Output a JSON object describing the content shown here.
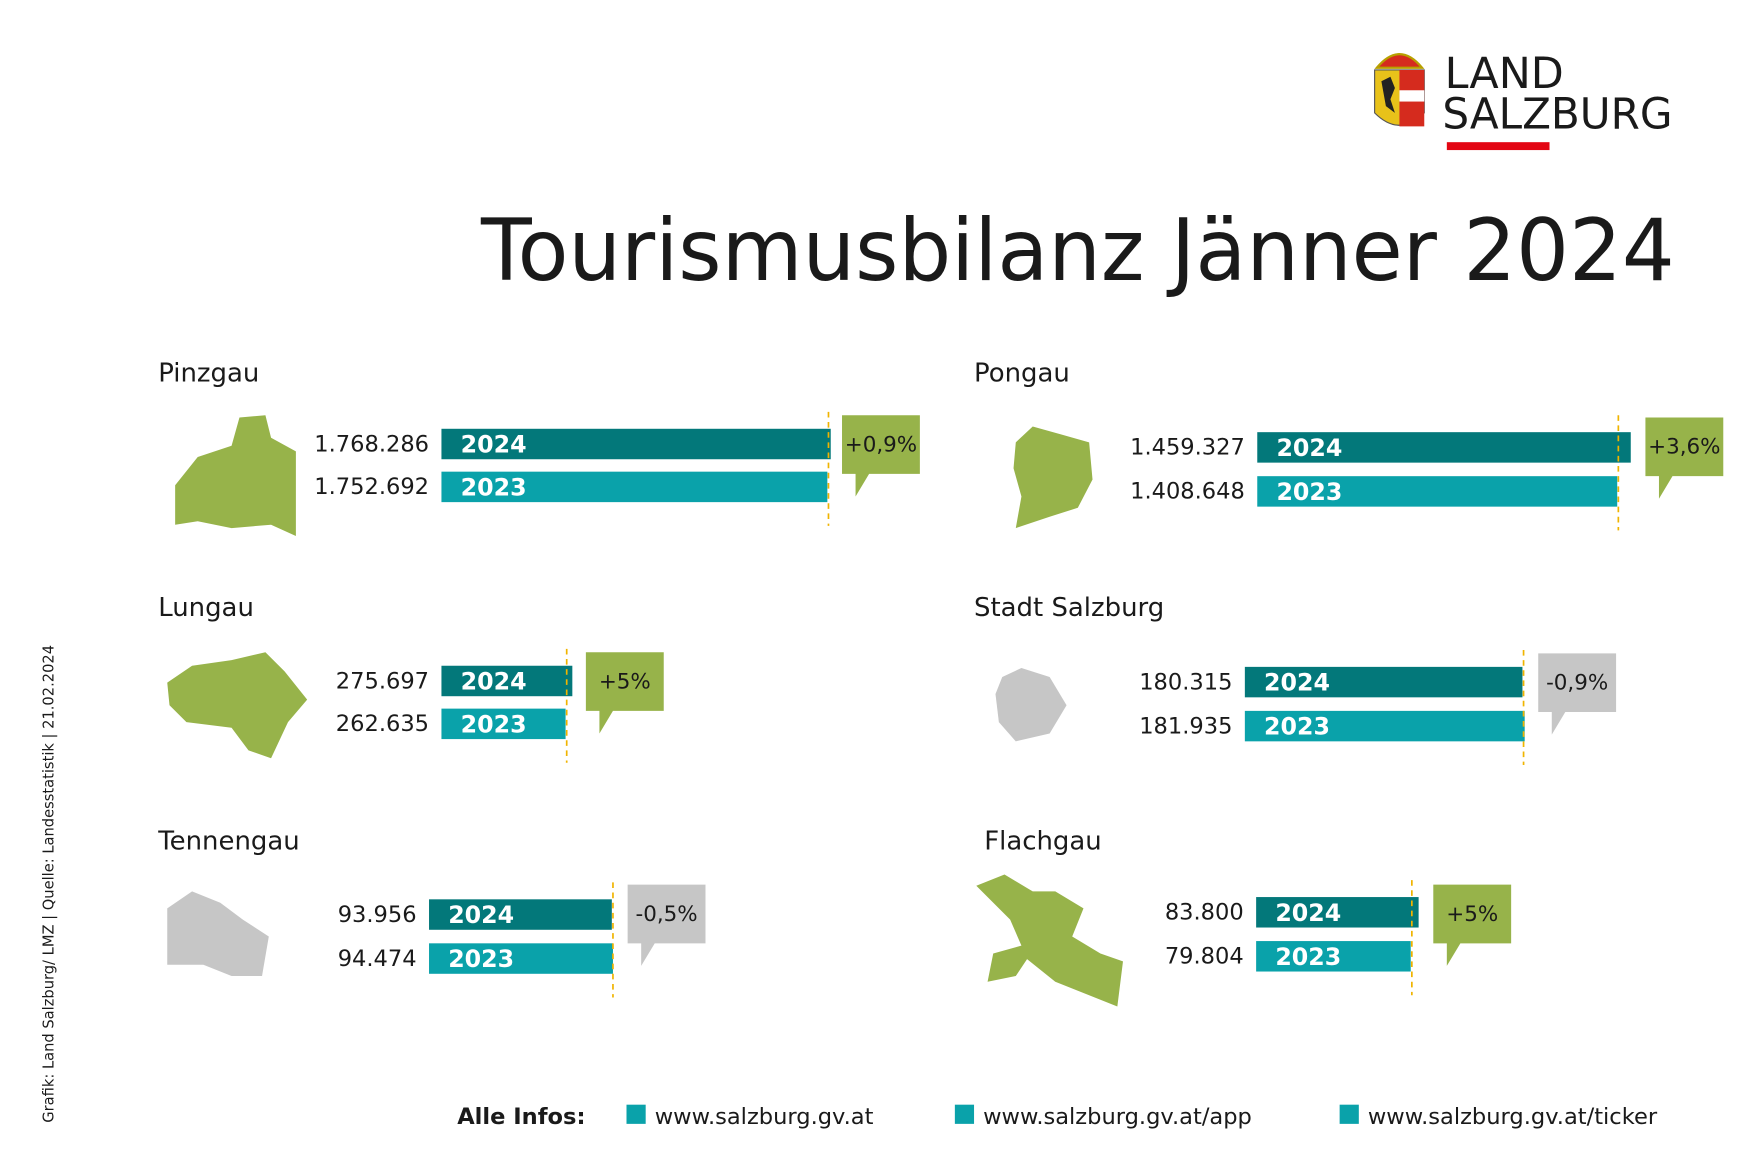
{
  "logo": {
    "line1": "LAND",
    "line2": "SALZBURG"
  },
  "title": "Tourismusbilanz Jänner 2024",
  "side_note": "Grafik: Land Salzburg/ LMZ | Quelle: Landesstatistik | 21.02.2024",
  "regions": [
    {
      "name": "Pinzgau",
      "rows": [
        {
          "year": "2024",
          "value": "1.768.286"
        },
        {
          "year": "2023",
          "value": "1.752.692"
        }
      ],
      "change": "+0,9%",
      "color": "#97b34a"
    },
    {
      "name": "Pongau",
      "rows": [
        {
          "year": "2024",
          "value": "1.459.327"
        },
        {
          "year": "2023",
          "value": "1.408.648"
        }
      ],
      "change": "+3,6%",
      "color": "#97b34a"
    },
    {
      "name": "Lungau",
      "rows": [
        {
          "year": "2024",
          "value": "275.697"
        },
        {
          "year": "2023",
          "value": "262.635"
        }
      ],
      "change": "+5%",
      "color": "#97b34a"
    },
    {
      "name": "Stadt Salzburg",
      "rows": [
        {
          "year": "2024",
          "value": "180.315"
        },
        {
          "year": "2023",
          "value": "181.935"
        }
      ],
      "change": "-0,9%",
      "color": "#c6c6c6"
    },
    {
      "name": "Tennengau",
      "rows": [
        {
          "year": "2024",
          "value": "93.956"
        },
        {
          "year": "2023",
          "value": "94.474"
        }
      ],
      "change": "-0,5%",
      "color": "#c6c6c6"
    },
    {
      "name": "Flachgau",
      "rows": [
        {
          "year": "2024",
          "value": "83.800"
        },
        {
          "year": "2023",
          "value": "79.804"
        }
      ],
      "change": "+5%",
      "color": "#97b34a"
    }
  ],
  "footer": {
    "label": "Alle Infos:",
    "links": [
      "www.salzburg.gv.at",
      "www.salzburg.gv.at/app",
      "www.salzburg.gv.at/ticker"
    ]
  }
}
